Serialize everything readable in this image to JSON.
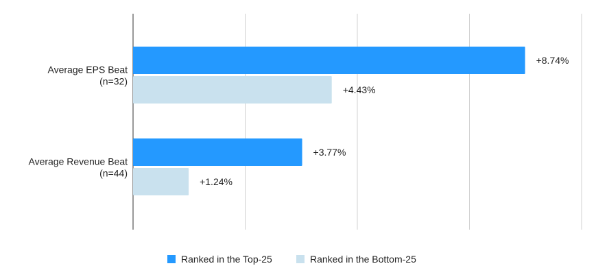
{
  "chart_data": {
    "type": "bar",
    "orientation": "horizontal",
    "categories": [
      "Average EPS Beat\n(n=32)",
      "Average Revenue Beat\n(n=44)"
    ],
    "series": [
      {
        "name": "Ranked in the Top-25",
        "values": [
          8.74,
          3.77
        ],
        "labels": [
          "+8.74%",
          "+3.77%"
        ],
        "color": "#2499FF"
      },
      {
        "name": "Ranked in the Bottom-25",
        "values": [
          4.43,
          1.24
        ],
        "labels": [
          "+4.43%",
          "+1.24%"
        ],
        "color": "#C9E1EE"
      }
    ],
    "xlim": [
      0,
      10
    ],
    "gridlines_at": [
      2.5,
      5,
      7.5,
      10
    ],
    "grid": true,
    "tick_labels_shown": false,
    "legend_placement": "bottom",
    "colors": {
      "grid": "#D0D0D0",
      "axis": "#333333"
    }
  }
}
